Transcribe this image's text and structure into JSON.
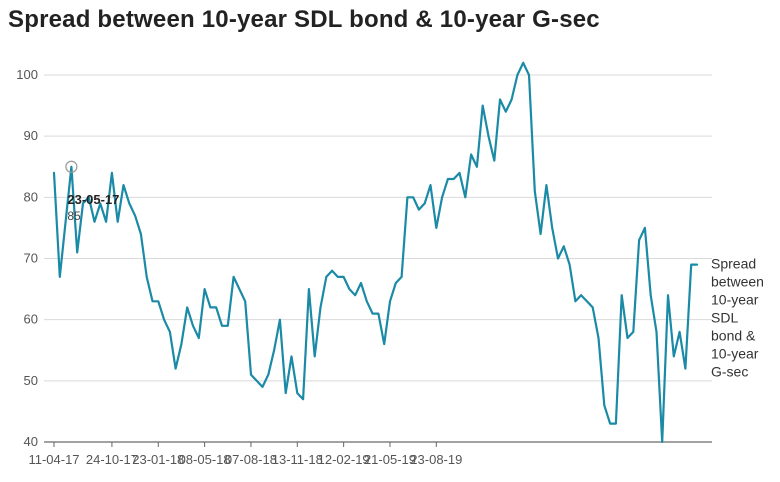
{
  "title": "Spread between 10-year SDL bond & 10-year G-sec",
  "chart_data": {
    "type": "line",
    "title": "Spread between 10-year SDL bond & 10-year G-sec",
    "xlabel": "",
    "ylabel": "",
    "ylim": [
      40,
      102
    ],
    "yticks": [
      40,
      50,
      60,
      70,
      80,
      90,
      100
    ],
    "grid": true,
    "color": "#1b8aa6",
    "x_tick_labels": [
      "11-04-17",
      "24-10-17",
      "23-01-18",
      "08-05-18",
      "07-08-18",
      "13-11-18",
      "12-02-19",
      "21-05-19",
      "23-08-19"
    ],
    "x_tick_index": [
      0,
      10,
      18,
      26,
      34,
      42,
      50,
      58,
      66
    ],
    "series": [
      {
        "name": "Spread between 10-year SDL bond & 10-year G-sec",
        "label_lines": [
          "Spread",
          "between",
          "10-year",
          "SDL",
          "bond &",
          "10-year",
          "G-sec"
        ],
        "values": [
          84,
          67,
          76,
          85,
          71,
          79,
          80,
          76,
          79,
          76,
          84,
          76,
          82,
          79,
          77,
          74,
          67,
          63,
          63,
          60,
          58,
          52,
          56,
          62,
          59,
          57,
          65,
          62,
          62,
          59,
          59,
          67,
          65,
          63,
          51,
          50,
          49,
          51,
          55,
          60,
          48,
          54,
          48,
          47,
          65,
          54,
          62,
          67,
          68,
          67,
          67,
          65,
          64,
          66,
          63,
          61,
          61,
          56,
          63,
          66,
          67,
          80,
          80,
          78,
          79,
          82,
          75,
          80,
          83,
          83,
          84,
          80,
          87,
          85,
          95,
          90,
          86,
          96,
          94,
          96,
          100,
          102,
          100,
          81,
          74,
          82,
          75,
          70,
          72,
          69,
          63,
          64,
          63,
          62,
          57,
          46,
          43,
          43,
          64,
          57,
          58,
          73,
          75,
          64,
          58,
          40,
          64,
          54,
          58,
          52,
          69,
          69
        ]
      }
    ],
    "annotation": {
      "date": "23-05-17",
      "value": "85",
      "index": 3
    }
  }
}
